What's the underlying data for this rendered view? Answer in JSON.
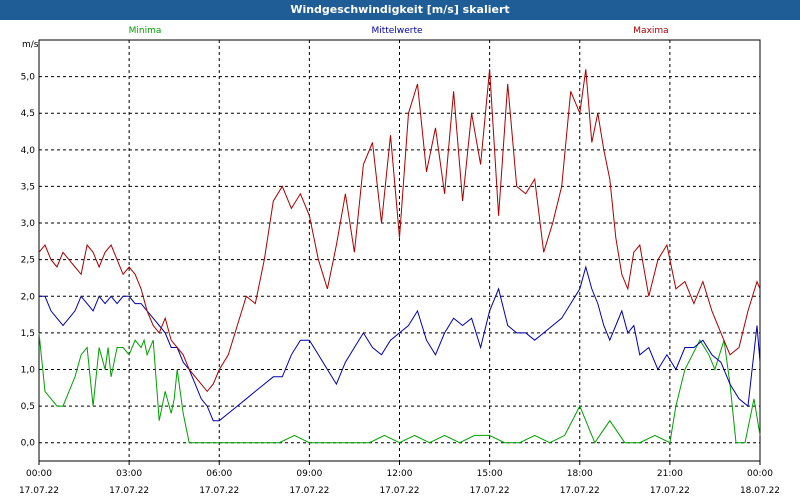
{
  "window": {
    "title": "Windgeschwindigkeit [m/s] skaliert"
  },
  "chart_data": {
    "type": "line",
    "title": "Windgeschwindigkeit [m/s] skaliert",
    "ylabel": "m/s",
    "xlabel": "",
    "ylim": [
      -0.25,
      5.5
    ],
    "xlim": [
      0,
      24
    ],
    "yticks": [
      "0,0",
      "0,5",
      "1,0",
      "1,5",
      "2,0",
      "2,5",
      "3,0",
      "3,5",
      "4,0",
      "4,5",
      "5,0"
    ],
    "ytick_values": [
      0,
      0.5,
      1,
      1.5,
      2,
      2.5,
      3,
      3.5,
      4,
      4.5,
      5
    ],
    "xticks": [
      {
        "time": "00:00",
        "date": "17.07.22",
        "hour": 0
      },
      {
        "time": "03:00",
        "date": "17.07.22",
        "hour": 3
      },
      {
        "time": "06:00",
        "date": "17.07.22",
        "hour": 6
      },
      {
        "time": "09:00",
        "date": "17.07.22",
        "hour": 9
      },
      {
        "time": "12:00",
        "date": "17.07.22",
        "hour": 12
      },
      {
        "time": "15:00",
        "date": "17.07.22",
        "hour": 15
      },
      {
        "time": "18:00",
        "date": "17.07.22",
        "hour": 18
      },
      {
        "time": "21:00",
        "date": "17.07.22",
        "hour": 21
      },
      {
        "time": "00:00",
        "date": "18.07.22",
        "hour": 24
      }
    ],
    "grid": true,
    "series": [
      {
        "name": "Minima",
        "color": "#00a000",
        "x": [
          0,
          0.2,
          0.4,
          0.6,
          0.8,
          1.0,
          1.2,
          1.4,
          1.6,
          1.7,
          1.8,
          2.0,
          2.2,
          2.3,
          2.4,
          2.6,
          2.8,
          3.0,
          3.2,
          3.4,
          3.5,
          3.6,
          3.8,
          4.0,
          4.2,
          4.4,
          4.5,
          4.6,
          4.8,
          5.0,
          5.2,
          5.5,
          6,
          7,
          8,
          8.5,
          9,
          9.5,
          10,
          11,
          11.5,
          12,
          12.5,
          13,
          13.5,
          14,
          14.5,
          15,
          15.5,
          16,
          16.5,
          17,
          17.5,
          18,
          18.2,
          18.5,
          19,
          19.5,
          20,
          20.5,
          21,
          21.2,
          21.5,
          22,
          22.3,
          22.5,
          22.8,
          23.0,
          23.2,
          23.5,
          23.8,
          24.0
        ],
        "values": [
          1.5,
          0.7,
          0.6,
          0.5,
          0.5,
          0.7,
          0.9,
          1.2,
          1.3,
          0.9,
          0.5,
          1.3,
          1.0,
          1.3,
          0.9,
          1.3,
          1.3,
          1.2,
          1.4,
          1.3,
          1.4,
          1.2,
          1.4,
          0.3,
          0.7,
          0.4,
          0.6,
          1.0,
          0.4,
          0.0,
          0.0,
          0.0,
          0.0,
          0.0,
          0.0,
          0.1,
          0.0,
          0.0,
          0.0,
          0.0,
          0.1,
          0.0,
          0.1,
          0.0,
          0.1,
          0.0,
          0.1,
          0.1,
          0.0,
          0.0,
          0.1,
          0.0,
          0.1,
          0.5,
          0.3,
          0.0,
          0.3,
          0.0,
          0.0,
          0.1,
          0.0,
          0.5,
          1.0,
          1.4,
          1.2,
          1.0,
          1.4,
          0.8,
          0.0,
          0.0,
          0.6,
          0.1
        ]
      },
      {
        "name": "Mittelwerte",
        "color": "#0000aa",
        "x": [
          0,
          0.2,
          0.4,
          0.6,
          0.8,
          1.0,
          1.2,
          1.4,
          1.6,
          1.8,
          2.0,
          2.2,
          2.4,
          2.6,
          2.8,
          3.0,
          3.2,
          3.4,
          3.6,
          3.8,
          4.0,
          4.2,
          4.4,
          4.6,
          4.8,
          5.0,
          5.2,
          5.4,
          5.6,
          5.8,
          6.0,
          6.3,
          6.6,
          6.9,
          7.2,
          7.5,
          7.8,
          8.1,
          8.4,
          8.7,
          9.0,
          9.3,
          9.6,
          9.9,
          10.2,
          10.5,
          10.8,
          11.1,
          11.4,
          11.7,
          12.0,
          12.3,
          12.6,
          12.9,
          13.2,
          13.5,
          13.8,
          14.1,
          14.4,
          14.7,
          15.0,
          15.3,
          15.6,
          15.9,
          16.2,
          16.5,
          16.8,
          17.1,
          17.4,
          17.7,
          18.0,
          18.2,
          18.4,
          18.6,
          18.8,
          19.0,
          19.2,
          19.4,
          19.6,
          19.8,
          20.0,
          20.3,
          20.6,
          20.9,
          21.2,
          21.5,
          21.8,
          22.1,
          22.4,
          22.7,
          23.0,
          23.3,
          23.6,
          23.9,
          24.0
        ],
        "values": [
          2.0,
          2.0,
          1.8,
          1.7,
          1.6,
          1.7,
          1.8,
          2.0,
          1.9,
          1.8,
          2.0,
          1.9,
          2.0,
          1.9,
          2.0,
          2.0,
          1.9,
          1.9,
          1.8,
          1.7,
          1.6,
          1.5,
          1.3,
          1.3,
          1.1,
          1.0,
          0.8,
          0.6,
          0.5,
          0.3,
          0.3,
          0.4,
          0.5,
          0.6,
          0.7,
          0.8,
          0.9,
          0.9,
          1.2,
          1.4,
          1.4,
          1.2,
          1.0,
          0.8,
          1.1,
          1.3,
          1.5,
          1.3,
          1.2,
          1.4,
          1.5,
          1.6,
          1.8,
          1.4,
          1.2,
          1.5,
          1.7,
          1.6,
          1.7,
          1.3,
          1.8,
          2.1,
          1.6,
          1.5,
          1.5,
          1.4,
          1.5,
          1.6,
          1.7,
          1.9,
          2.1,
          2.4,
          2.1,
          1.9,
          1.6,
          1.4,
          1.6,
          1.8,
          1.5,
          1.6,
          1.2,
          1.3,
          1.0,
          1.2,
          1.0,
          1.3,
          1.3,
          1.4,
          1.2,
          1.1,
          0.8,
          0.6,
          0.5,
          1.6,
          1.1
        ]
      },
      {
        "name": "Maxima",
        "color": "#aa0000",
        "x": [
          0,
          0.2,
          0.4,
          0.6,
          0.8,
          1.0,
          1.2,
          1.4,
          1.6,
          1.8,
          2.0,
          2.2,
          2.4,
          2.6,
          2.8,
          3.0,
          3.2,
          3.4,
          3.6,
          3.8,
          4.0,
          4.2,
          4.4,
          4.6,
          4.8,
          5.0,
          5.2,
          5.4,
          5.6,
          5.8,
          6.0,
          6.3,
          6.6,
          6.9,
          7.2,
          7.5,
          7.8,
          8.1,
          8.4,
          8.7,
          9.0,
          9.3,
          9.6,
          9.9,
          10.2,
          10.5,
          10.8,
          11.1,
          11.4,
          11.7,
          12.0,
          12.3,
          12.6,
          12.9,
          13.2,
          13.5,
          13.8,
          14.1,
          14.4,
          14.7,
          15.0,
          15.3,
          15.6,
          15.9,
          16.2,
          16.5,
          16.8,
          17.1,
          17.4,
          17.7,
          18.0,
          18.2,
          18.4,
          18.6,
          18.8,
          19.0,
          19.2,
          19.4,
          19.6,
          19.8,
          20.0,
          20.3,
          20.6,
          20.9,
          21.2,
          21.5,
          21.8,
          22.1,
          22.4,
          22.7,
          23.0,
          23.3,
          23.6,
          23.9,
          24.0
        ],
        "values": [
          2.6,
          2.7,
          2.5,
          2.4,
          2.6,
          2.5,
          2.4,
          2.3,
          2.7,
          2.6,
          2.4,
          2.6,
          2.7,
          2.5,
          2.3,
          2.4,
          2.3,
          2.1,
          1.8,
          1.6,
          1.5,
          1.7,
          1.4,
          1.3,
          1.2,
          1.0,
          0.9,
          0.8,
          0.7,
          0.8,
          1.0,
          1.2,
          1.6,
          2.0,
          1.9,
          2.5,
          3.3,
          3.5,
          3.2,
          3.4,
          3.1,
          2.5,
          2.1,
          2.7,
          3.4,
          2.6,
          3.8,
          4.1,
          3.0,
          4.2,
          2.8,
          4.5,
          4.9,
          3.7,
          4.3,
          3.4,
          4.8,
          3.3,
          4.5,
          3.8,
          5.1,
          3.1,
          4.9,
          3.5,
          3.4,
          3.6,
          2.6,
          3.0,
          3.5,
          4.8,
          4.5,
          5.1,
          4.1,
          4.5,
          4.0,
          3.6,
          2.8,
          2.3,
          2.1,
          2.6,
          2.7,
          2.0,
          2.5,
          2.7,
          2.1,
          2.2,
          1.9,
          2.2,
          1.8,
          1.5,
          1.2,
          1.3,
          1.8,
          2.2,
          2.1
        ]
      }
    ]
  }
}
